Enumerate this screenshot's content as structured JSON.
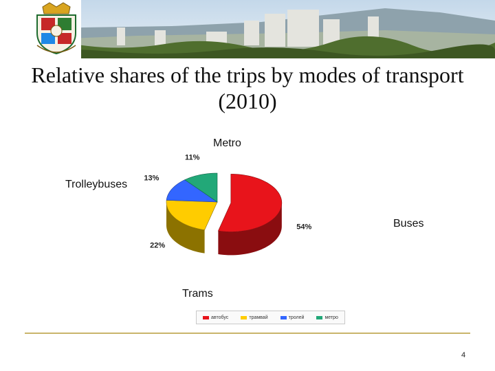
{
  "slide": {
    "title": "Relative shares of the trips by modes of transport (2010)",
    "page_number": "4"
  },
  "chart_data": {
    "type": "pie",
    "title": "",
    "categories": [
      "Buses",
      "Trams",
      "Trolleybuses",
      "Metro"
    ],
    "legend_labels": [
      "автобус",
      "трамвай",
      "тролей",
      "метро"
    ],
    "values": [
      54,
      22,
      13,
      11
    ],
    "value_labels": [
      "54%",
      "22%",
      "13%",
      "11%"
    ],
    "colors": [
      "#e8141b",
      "#ffcc00",
      "#3366ff",
      "#22a878"
    ],
    "dark_colors": [
      "#8a0d10",
      "#8c7200",
      "#1f3d99",
      "#13664a"
    ],
    "exploded": "Buses",
    "legend_position": "bottom"
  }
}
